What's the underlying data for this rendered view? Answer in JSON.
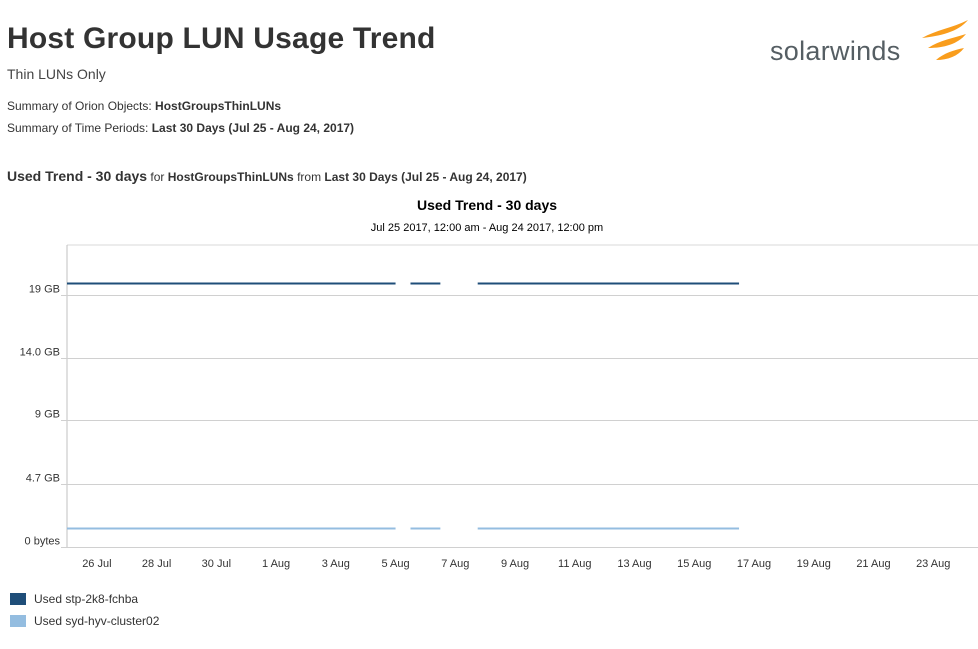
{
  "report": {
    "title": "Host Group LUN Usage Trend",
    "subtitle": "Thin LUNs Only",
    "summary_objects_label": "Summary of Orion Objects: ",
    "summary_objects_value": "HostGroupsThinLUNs",
    "summary_time_label": "Summary of Time Periods: ",
    "summary_time_value": "Last 30 Days (Jul 25 - Aug 24, 2017)"
  },
  "logo": {
    "text": "solarwinds",
    "flame_color": "#f99d1c"
  },
  "section": {
    "title": "Used Trend - 30 days",
    "for_text": " for ",
    "object": "HostGroupsThinLUNs",
    "from_text": " from ",
    "period": "Last 30 Days (Jul 25 - Aug 24, 2017)"
  },
  "chart_data": {
    "type": "line",
    "title": "Used Trend - 30 days",
    "subtitle": "Jul 25 2017, 12:00 am - Aug 24 2017, 12:00 pm",
    "x_range": [
      "2017-07-25",
      "2017-08-24"
    ],
    "x_ticks": [
      "26 Jul",
      "28 Jul",
      "30 Jul",
      "1 Aug",
      "3 Aug",
      "5 Aug",
      "7 Aug",
      "9 Aug",
      "11 Aug",
      "13 Aug",
      "15 Aug",
      "17 Aug",
      "19 Aug",
      "21 Aug",
      "23 Aug"
    ],
    "y_ticks": [
      "0 bytes",
      "4.7 GB",
      "9 GB",
      "14.0 GB",
      "19 GB"
    ],
    "y_tick_values_gb": [
      0,
      4.7,
      9.4,
      14.0,
      18.7
    ],
    "ylim_gb": [
      0,
      22.4
    ],
    "grid": true,
    "series": [
      {
        "name": "Used stp-2k8-fchba",
        "color": "#1f4e79",
        "segments": [
          {
            "start": "2017-07-25",
            "end": "2017-08-05",
            "value_gb": 19.6
          },
          {
            "start": "2017-08-05 12:00",
            "end": "2017-08-06 12:00",
            "value_gb": 19.6
          },
          {
            "start": "2017-08-07 18:00",
            "end": "2017-08-16 12:00",
            "value_gb": 19.6
          }
        ]
      },
      {
        "name": "Used syd-hyv-cluster02",
        "color": "#94bde0",
        "segments": [
          {
            "start": "2017-07-25",
            "end": "2017-08-05",
            "value_gb": 1.4
          },
          {
            "start": "2017-08-05 12:00",
            "end": "2017-08-06 12:00",
            "value_gb": 1.4
          },
          {
            "start": "2017-08-07 18:00",
            "end": "2017-08-16 12:00",
            "value_gb": 1.4
          }
        ]
      }
    ],
    "legend_position": "bottom-left"
  }
}
